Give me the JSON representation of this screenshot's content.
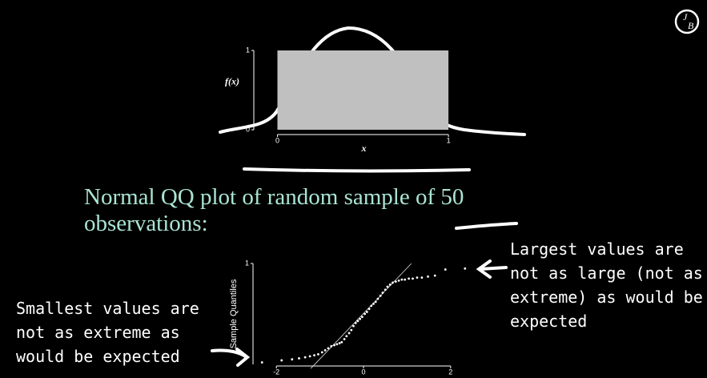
{
  "heading": "Normal QQ plot of random sample of 50 observations:",
  "annotations": [
    "Smallest values are not as extreme as would be expected",
    "Largest values are not as large (not as extreme) as would be expected"
  ],
  "logo": [
    "J",
    "B"
  ],
  "chart_data": [
    {
      "type": "area",
      "x_label": "x",
      "y_label": "f(x)",
      "x": [
        0,
        1
      ],
      "values": [
        1,
        1
      ],
      "color": "#c0c0c0",
      "xlim": [
        -0.11,
        1.14
      ],
      "ylim": [
        0,
        1
      ],
      "xticks": [
        0,
        1
      ],
      "yticks": [
        0,
        1
      ]
    },
    {
      "type": "scatter",
      "y_label": "Sample Quantiles",
      "color": "#ffffff",
      "x": [
        -2.33,
        -1.88,
        -1.64,
        -1.48,
        -1.34,
        -1.23,
        -1.13,
        -1.04,
        -0.95,
        -0.88,
        -0.81,
        -0.74,
        -0.67,
        -0.61,
        -0.55,
        -0.5,
        -0.44,
        -0.39,
        -0.33,
        -0.28,
        -0.23,
        -0.18,
        -0.13,
        -0.08,
        -0.03,
        0.03,
        0.08,
        0.13,
        0.18,
        0.23,
        0.28,
        0.33,
        0.39,
        0.44,
        0.5,
        0.55,
        0.61,
        0.67,
        0.74,
        0.81,
        0.88,
        0.95,
        1.04,
        1.13,
        1.23,
        1.34,
        1.48,
        1.64,
        1.88,
        2.33
      ],
      "values": [
        0.02,
        0.04,
        0.05,
        0.06,
        0.07,
        0.08,
        0.09,
        0.1,
        0.12,
        0.14,
        0.16,
        0.18,
        0.19,
        0.2,
        0.21,
        0.22,
        0.25,
        0.28,
        0.31,
        0.34,
        0.38,
        0.41,
        0.43,
        0.45,
        0.47,
        0.5,
        0.52,
        0.55,
        0.58,
        0.6,
        0.62,
        0.65,
        0.68,
        0.71,
        0.74,
        0.77,
        0.79,
        0.81,
        0.82,
        0.83,
        0.84,
        0.84,
        0.85,
        0.85,
        0.86,
        0.86,
        0.87,
        0.88,
        0.94,
        0.95
      ],
      "reference_line": {
        "x": [
          -1.21,
          1.1
        ],
        "values": [
          -0.04,
          1
        ]
      },
      "xlim": [
        -2.5,
        2.5
      ],
      "ylim": [
        0,
        1
      ],
      "xticks": [
        -2,
        0,
        2
      ],
      "yticks": [
        1
      ]
    }
  ]
}
